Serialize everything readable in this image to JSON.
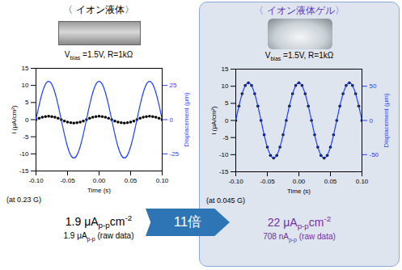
{
  "arrow_label": "11倍",
  "chart_data": [
    {
      "type": "line",
      "title": "〈 イオン液体〉",
      "xlabel": "Time (s)",
      "ylabel": "I (μA/cm²)",
      "y2label": "Displacement (μm)",
      "annotations": {
        "condition": [
          {
            "t": "V"
          },
          {
            "sub": "bias"
          },
          {
            "t": " =1.5V,  R=1kΩ"
          }
        ],
        "frequency": [
          {
            "t": "(at 0.23 G)"
          }
        ],
        "density": [
          {
            "t": "1.9 μA"
          },
          {
            "sub": "p-p"
          },
          {
            "t": "cm"
          },
          {
            "sup": "-2"
          }
        ],
        "raw": [
          {
            "t": "1.9 μA"
          },
          {
            "sub": "p-p"
          },
          {
            "t": " (raw data)"
          }
        ]
      },
      "x": [
        -0.1,
        -0.095,
        -0.09,
        -0.085,
        -0.08,
        -0.075,
        -0.07,
        -0.065,
        -0.06,
        -0.055,
        -0.05,
        -0.045,
        -0.04,
        -0.035,
        -0.03,
        -0.025,
        -0.02,
        -0.015,
        -0.01,
        -0.005,
        0,
        0.005,
        0.01,
        0.015,
        0.02,
        0.025,
        0.03,
        0.035,
        0.04,
        0.045,
        0.05,
        0.055,
        0.06,
        0.065,
        0.07,
        0.075,
        0.08,
        0.085,
        0.09,
        0.095,
        0.1
      ],
      "series": [
        {
          "type": "scatter",
          "marker": "dot",
          "color": "#000000",
          "values": [
            0,
            0.4,
            0.7,
            0.9,
            1,
            0.9,
            0.7,
            0.4,
            0,
            -0.4,
            -0.7,
            -0.9,
            -1,
            -0.9,
            -0.7,
            -0.4,
            0,
            0.4,
            0.7,
            0.9,
            1,
            0.9,
            0.7,
            0.4,
            0,
            -0.4,
            -0.7,
            -0.9,
            -1,
            -0.9,
            -0.7,
            -0.4,
            0,
            0.4,
            0.7,
            0.9,
            1,
            0.9,
            0.7,
            0.4,
            0
          ]
        },
        {
          "type": "line",
          "axis": "y2",
          "color": "#1f3fff",
          "values": [
            0,
            10.7,
            19.8,
            25.9,
            28,
            25.9,
            19.8,
            10.7,
            0,
            -10.7,
            -19.8,
            -25.9,
            -28,
            -25.9,
            -19.8,
            -10.7,
            0,
            10.7,
            19.8,
            25.9,
            28,
            25.9,
            19.8,
            10.7,
            0,
            -10.7,
            -19.8,
            -25.9,
            -28,
            -25.9,
            -19.8,
            -10.7,
            0,
            10.7,
            19.8,
            25.9,
            28,
            25.9,
            19.8,
            10.7,
            0
          ]
        }
      ],
      "xlim": [
        -0.1,
        0.1
      ],
      "xticks": [
        {
          "value": -0.1,
          "label": "-0.10"
        },
        {
          "value": -0.05,
          "label": "-0.05"
        },
        {
          "value": 0,
          "label": "0.00"
        },
        {
          "value": 0.05,
          "label": "0.05"
        },
        {
          "value": 0.1,
          "label": "0.10"
        }
      ],
      "ylim": [
        -15,
        15
      ],
      "yticks": [
        -15,
        -10,
        -5,
        0,
        5,
        10,
        15
      ],
      "y2lim": [
        -37.5,
        37.5
      ],
      "y2ticks": [
        -25,
        0,
        25
      ]
    },
    {
      "type": "line",
      "title": "〈 イオン液体ゲル〉",
      "xlabel": "Time (s)",
      "ylabel": "I (μA/cm²)",
      "y2label": "Displacement (μm)",
      "annotations": {
        "condition": [
          {
            "t": "V"
          },
          {
            "sub": "bias"
          },
          {
            "t": " =1.5V,  R=1kΩ"
          }
        ],
        "frequency": [
          {
            "t": "(at 0.045 G)"
          }
        ],
        "density": [
          {
            "t": "22 μA"
          },
          {
            "sub": "p-p"
          },
          {
            "t": "cm"
          },
          {
            "sup": "-2"
          }
        ],
        "raw": [
          {
            "t": "708 nA"
          },
          {
            "sub": "p-p"
          },
          {
            "t": " (raw data)"
          }
        ]
      },
      "x": [
        -0.1,
        -0.095,
        -0.09,
        -0.085,
        -0.08,
        -0.075,
        -0.07,
        -0.065,
        -0.06,
        -0.055,
        -0.05,
        -0.045,
        -0.04,
        -0.035,
        -0.03,
        -0.025,
        -0.02,
        -0.015,
        -0.01,
        -0.005,
        0,
        0.005,
        0.01,
        0.015,
        0.02,
        0.025,
        0.03,
        0.035,
        0.04,
        0.045,
        0.05,
        0.055,
        0.06,
        0.065,
        0.07,
        0.075,
        0.08,
        0.085,
        0.09,
        0.095,
        0.1
      ],
      "series": [
        {
          "type": "scatter",
          "marker": "dot",
          "color": "#000000",
          "values": [
            0,
            4.2,
            7.8,
            10.2,
            11,
            10.2,
            7.8,
            4.2,
            0,
            -4.2,
            -7.8,
            -10.2,
            -11,
            -10.2,
            -7.8,
            -4.2,
            0,
            4.2,
            7.8,
            10.2,
            11,
            10.2,
            7.8,
            4.2,
            0,
            -4.2,
            -7.8,
            -10.2,
            -11,
            -10.2,
            -7.8,
            -4.2,
            0,
            4.2,
            7.8,
            10.2,
            11,
            10.2,
            7.8,
            4.2,
            0
          ]
        },
        {
          "type": "line",
          "axis": "y2",
          "color": "#1f3fff",
          "values": [
            0,
            21,
            38.9,
            50.8,
            55,
            50.8,
            38.9,
            21,
            0,
            -21,
            -38.9,
            -50.8,
            -55,
            -50.8,
            -38.9,
            -21,
            0,
            21,
            38.9,
            50.8,
            55,
            50.8,
            38.9,
            21,
            0,
            -21,
            -38.9,
            -50.8,
            -55,
            -50.8,
            -38.9,
            -21,
            0,
            21,
            38.9,
            50.8,
            55,
            50.8,
            38.9,
            21,
            0
          ]
        }
      ],
      "xlim": [
        -0.1,
        0.1
      ],
      "xticks": [
        {
          "value": -0.1,
          "label": "-0.10"
        },
        {
          "value": -0.05,
          "label": "-0.05"
        },
        {
          "value": 0,
          "label": "0.00"
        },
        {
          "value": 0.05,
          "label": "0.05"
        },
        {
          "value": 0.1,
          "label": "0.10"
        }
      ],
      "ylim": [
        -15,
        15
      ],
      "yticks": [
        -15,
        -10,
        -5,
        0,
        5,
        10,
        15
      ],
      "y2lim": [
        -75,
        75
      ],
      "y2ticks": [
        -50,
        0,
        50
      ]
    }
  ]
}
